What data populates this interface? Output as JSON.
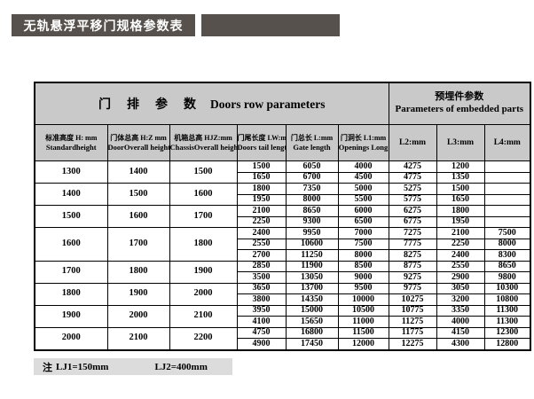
{
  "title": "无轨悬浮平移门规格参数表",
  "table": {
    "group_headers": {
      "doors_row_cn": "门　排　参　数",
      "doors_row_en": "Doors row parameters",
      "embedded_cn": "预埋件参数",
      "embedded_en": "Parameters of embedded parts"
    },
    "columns": [
      {
        "cn": "标准高度 H: mm",
        "en": "Standardheight"
      },
      {
        "cn": "门体总高 H:Z mm",
        "en": "DoorOverall height"
      },
      {
        "cn": "机箱总高 HJZ:mm",
        "en": "ChassisOverall height"
      },
      {
        "cn": "门尾长度 LW:mm",
        "en": "Doors tail length"
      },
      {
        "cn": "门总长 L:mm",
        "en": "Gate length"
      },
      {
        "cn": "门洞长 L1:mm",
        "en": "Openings Long"
      },
      {
        "cn": "L2:mm",
        "en": ""
      },
      {
        "cn": "L3:mm",
        "en": ""
      },
      {
        "cn": "L4:mm",
        "en": ""
      }
    ],
    "groups": [
      {
        "standard_height": "1300",
        "door_overall_height": "1400",
        "chassis_overall_height": "1500",
        "rows": [
          [
            "1500",
            "6050",
            "4000",
            "4275",
            "1200",
            ""
          ],
          [
            "1650",
            "6700",
            "4500",
            "4775",
            "1350",
            ""
          ]
        ]
      },
      {
        "standard_height": "1400",
        "door_overall_height": "1500",
        "chassis_overall_height": "1600",
        "rows": [
          [
            "1800",
            "7350",
            "5000",
            "5275",
            "1500",
            ""
          ],
          [
            "1950",
            "8000",
            "5500",
            "5775",
            "1650",
            ""
          ]
        ]
      },
      {
        "standard_height": "1500",
        "door_overall_height": "1600",
        "chassis_overall_height": "1700",
        "rows": [
          [
            "2100",
            "8650",
            "6000",
            "6275",
            "1800",
            ""
          ],
          [
            "2250",
            "9300",
            "6500",
            "6775",
            "1950",
            ""
          ]
        ]
      },
      {
        "standard_height": "1600",
        "door_overall_height": "1700",
        "chassis_overall_height": "1800",
        "rows": [
          [
            "2400",
            "9950",
            "7000",
            "7275",
            "2100",
            "7500"
          ],
          [
            "2550",
            "10600",
            "7500",
            "7775",
            "2250",
            "8000"
          ],
          [
            "2700",
            "11250",
            "8000",
            "8275",
            "2400",
            "8300"
          ]
        ]
      },
      {
        "standard_height": "1700",
        "door_overall_height": "1800",
        "chassis_overall_height": "1900",
        "rows": [
          [
            "2850",
            "11900",
            "8500",
            "8775",
            "2550",
            "8650"
          ],
          [
            "3500",
            "13050",
            "9000",
            "9275",
            "2900",
            "9800"
          ]
        ]
      },
      {
        "standard_height": "1800",
        "door_overall_height": "1900",
        "chassis_overall_height": "2000",
        "rows": [
          [
            "3650",
            "13700",
            "9500",
            "9775",
            "3050",
            "10300"
          ],
          [
            "3800",
            "14350",
            "10000",
            "10275",
            "3200",
            "10800"
          ]
        ]
      },
      {
        "standard_height": "1900",
        "door_overall_height": "2000",
        "chassis_overall_height": "2100",
        "rows": [
          [
            "3950",
            "15000",
            "10500",
            "10775",
            "3350",
            "11300"
          ],
          [
            "4100",
            "15650",
            "11000",
            "11275",
            "4000",
            "11300"
          ]
        ]
      },
      {
        "standard_height": "2000",
        "door_overall_height": "2100",
        "chassis_overall_height": "2200",
        "rows": [
          [
            "4750",
            "16800",
            "11500",
            "11775",
            "4150",
            "12300"
          ],
          [
            "4900",
            "17450",
            "12000",
            "12275",
            "4300",
            "12800"
          ]
        ]
      }
    ]
  },
  "note": {
    "prefix": "注",
    "lj1": "LJ1=150mm",
    "lj2": "LJ2=400mm"
  },
  "colors": {
    "title_bar": "#56514c",
    "header_bg": "#c9c9c9",
    "note_bg": "#dcdcdc",
    "border": "#000000",
    "title_text": "#ffffff"
  }
}
